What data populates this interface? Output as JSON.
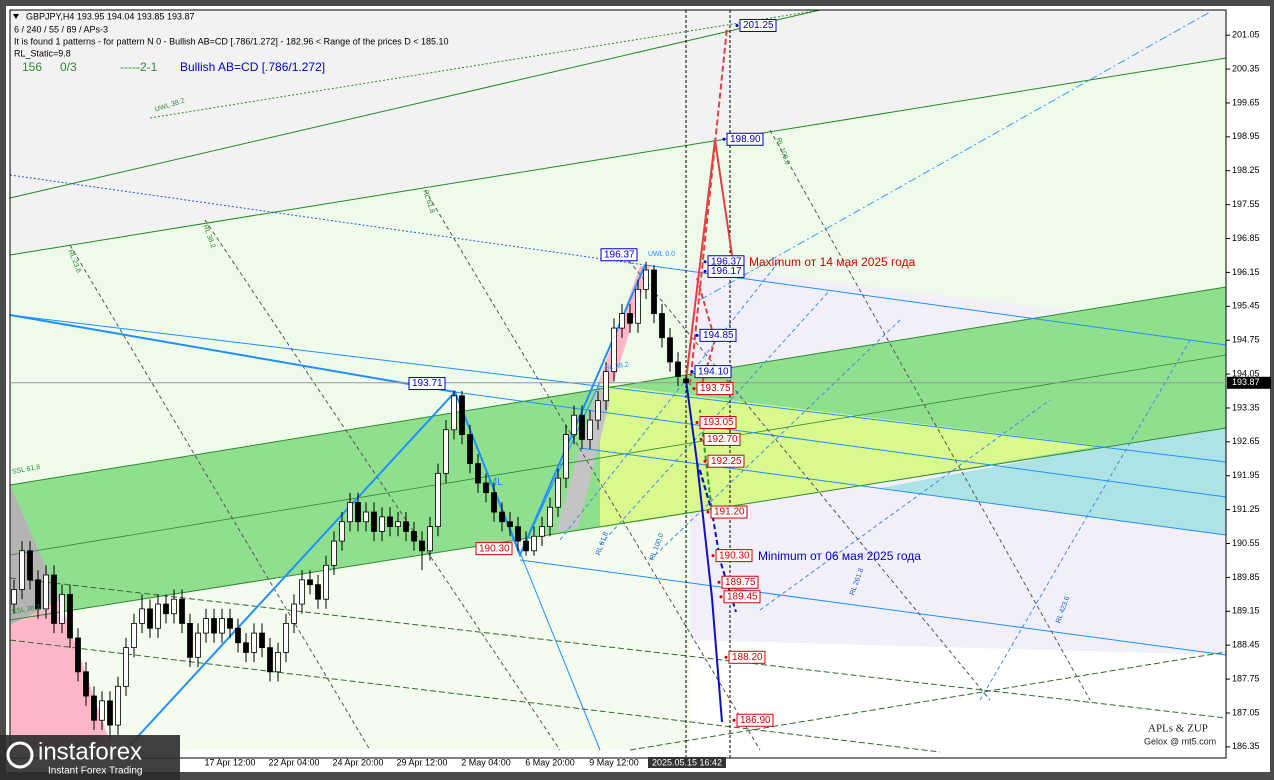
{
  "header": {
    "symbol_line": "GBPJPY,H4  193.95 194.04 193.85 193.87",
    "settings": "6 / 240 / 55 / 89 / APs-3",
    "pattern_info": "It is found 1 patterns  -  for pattern N 0 - Bullish AB=CD [.786/1.272] - 182.96 < Range of the prices D < 185.10",
    "rl_static": "RL_Static=9.8",
    "status": [
      "156",
      "0/3",
      "-----2-1"
    ],
    "pattern_name": "Bullish AB=CD [.786/1.272]"
  },
  "chart_data": {
    "type": "candlestick",
    "categories": [
      null,
      null,
      null,
      null,
      null,
      null,
      null,
      null,
      null,
      null,
      null,
      null,
      null,
      null,
      null,
      null,
      null,
      null,
      null,
      null,
      null,
      null,
      null,
      null,
      null,
      null,
      null,
      "17 Apr 12:00",
      null,
      null,
      null,
      null,
      null,
      null,
      null,
      "22 Apr 04:00",
      null,
      null,
      null,
      null,
      null,
      null,
      null,
      "24 Apr 20:00",
      null,
      null,
      null,
      null,
      null,
      null,
      null,
      "29 Apr 12:00",
      null,
      null,
      null,
      null,
      null,
      null,
      null,
      "2 May 04:00",
      null,
      null,
      null,
      null,
      null,
      null,
      null,
      "6 May 20:00",
      null,
      null,
      null,
      null,
      null,
      null,
      null,
      "9 May 12:00",
      null,
      null,
      null,
      null,
      null,
      null,
      null,
      null,
      "2025.05.15 16:42"
    ],
    "open": [
      189.3,
      189.6,
      190.4,
      189.8,
      189.2,
      189.9,
      188.9,
      189.5,
      188.6,
      187.9,
      187.4,
      186.9,
      187.3,
      186.8,
      187.6,
      188.4,
      188.9,
      189.2,
      188.8,
      189.3,
      189.1,
      189.4,
      188.9,
      188.2,
      188.7,
      189.0,
      188.7,
      189.0,
      188.8,
      188.5,
      188.3,
      188.7,
      188.4,
      187.9,
      188.3,
      188.9,
      189.3,
      189.8,
      189.7,
      189.4,
      190.1,
      190.6,
      191.0,
      191.4,
      191.0,
      191.2,
      190.8,
      191.1,
      190.9,
      191.0,
      190.8,
      190.6,
      190.4,
      190.9,
      192.0,
      192.9,
      193.6,
      192.8,
      192.2,
      191.8,
      191.6,
      191.2,
      191.0,
      190.9,
      190.6,
      190.4,
      190.7,
      190.9,
      191.3,
      191.9,
      192.8,
      193.2,
      192.7,
      193.1,
      193.5,
      194.1,
      195.0,
      195.3,
      195.1,
      195.8,
      196.2,
      195.3,
      194.8,
      194.3,
      193.95
    ],
    "high": [
      189.8,
      190.6,
      190.6,
      190.0,
      190.1,
      190.1,
      189.7,
      189.7,
      188.8,
      188.1,
      187.6,
      187.5,
      187.5,
      187.8,
      188.6,
      189.1,
      189.5,
      189.4,
      189.5,
      189.5,
      189.6,
      189.6,
      189.1,
      188.9,
      189.2,
      189.2,
      189.2,
      189.2,
      189.0,
      188.7,
      188.9,
      188.9,
      188.6,
      188.5,
      189.1,
      189.5,
      190.0,
      190.0,
      189.9,
      190.3,
      190.8,
      191.2,
      191.6,
      191.6,
      191.4,
      191.4,
      191.3,
      191.3,
      191.2,
      191.2,
      191.0,
      190.8,
      191.1,
      192.2,
      193.1,
      193.71,
      193.7,
      193.0,
      192.4,
      192.0,
      191.8,
      191.4,
      191.2,
      191.1,
      190.8,
      190.9,
      191.1,
      191.5,
      192.1,
      193.0,
      193.4,
      193.4,
      193.3,
      193.7,
      194.3,
      195.2,
      195.5,
      195.5,
      196.0,
      196.37,
      196.3,
      195.5,
      195.0,
      194.5,
      194.04
    ],
    "low": [
      189.1,
      189.4,
      189.6,
      189.0,
      189.0,
      188.7,
      188.7,
      188.4,
      187.7,
      187.2,
      186.7,
      186.7,
      186.5,
      186.6,
      187.4,
      188.2,
      188.7,
      188.6,
      188.6,
      188.9,
      188.9,
      188.7,
      188.0,
      188.0,
      188.5,
      188.5,
      188.5,
      188.6,
      188.3,
      188.1,
      188.1,
      188.2,
      187.7,
      187.7,
      188.1,
      188.7,
      189.1,
      189.5,
      189.2,
      189.2,
      189.9,
      190.4,
      190.8,
      190.8,
      190.8,
      190.6,
      190.6,
      190.7,
      190.7,
      190.6,
      190.4,
      190.0,
      190.2,
      190.7,
      191.8,
      192.7,
      192.6,
      192.0,
      191.6,
      191.4,
      191.0,
      190.8,
      190.7,
      190.4,
      190.3,
      190.3,
      190.5,
      190.7,
      191.1,
      191.7,
      192.6,
      192.5,
      192.5,
      192.9,
      193.3,
      193.9,
      194.8,
      194.9,
      194.9,
      195.6,
      195.1,
      194.6,
      194.1,
      193.8,
      193.85
    ],
    "close": [
      189.6,
      190.4,
      189.8,
      189.2,
      189.9,
      188.9,
      189.5,
      188.6,
      187.9,
      187.4,
      186.9,
      187.3,
      186.8,
      187.6,
      188.4,
      188.9,
      189.2,
      188.8,
      189.3,
      189.1,
      189.4,
      188.9,
      188.2,
      188.7,
      189.0,
      188.7,
      189.0,
      188.8,
      188.5,
      188.3,
      188.7,
      188.4,
      187.9,
      188.3,
      188.9,
      189.3,
      189.8,
      189.7,
      189.4,
      190.1,
      190.6,
      191.0,
      191.4,
      191.0,
      191.2,
      190.8,
      191.1,
      190.9,
      191.0,
      190.8,
      190.6,
      190.4,
      190.9,
      192.0,
      192.9,
      193.6,
      192.8,
      192.2,
      191.8,
      191.6,
      191.2,
      191.0,
      190.9,
      190.6,
      190.4,
      190.7,
      190.9,
      191.3,
      191.9,
      192.8,
      193.2,
      192.7,
      193.1,
      193.5,
      194.1,
      195.0,
      195.3,
      195.1,
      195.8,
      196.2,
      195.3,
      194.8,
      194.3,
      194.0,
      193.87
    ],
    "up_color": "#ffffff",
    "down_color": "#000000",
    "wick_color": "#000000",
    "ylim": [
      186.12,
      201.57
    ],
    "yticks": [
      201.05,
      200.35,
      199.65,
      198.95,
      198.25,
      197.55,
      196.85,
      196.15,
      195.45,
      194.75,
      194.05,
      193.35,
      192.65,
      191.95,
      191.25,
      190.55,
      189.85,
      189.15,
      188.45,
      187.75,
      187.05,
      186.35
    ],
    "current_price": 193.87,
    "price_tags": [
      {
        "value": 201.25,
        "label": "201.25",
        "color": "#0000cd"
      },
      {
        "value": 198.9,
        "label": "198.90",
        "color": "#0000cd"
      },
      {
        "value": 196.37,
        "label": "196.37",
        "color": "#0000cd"
      },
      {
        "value": 196.17,
        "label": "196.17",
        "color": "#0000cd"
      },
      {
        "value": 194.85,
        "label": "194.85",
        "color": "#0000cd"
      },
      {
        "value": 194.1,
        "label": "194.10",
        "color": "#0000cd"
      },
      {
        "value": 193.75,
        "label": "193.75",
        "color": "#d00000"
      },
      {
        "value": 193.05,
        "label": "193.05",
        "color": "#d00000"
      },
      {
        "value": 192.7,
        "label": "192.70",
        "color": "#d00000"
      },
      {
        "value": 192.25,
        "label": "192.25",
        "color": "#d00000"
      },
      {
        "value": 191.2,
        "label": "191.20",
        "color": "#d00000"
      },
      {
        "value": 190.3,
        "label": "190.30",
        "color": "#d00000"
      },
      {
        "value": 189.75,
        "label": "189.75",
        "color": "#d00000"
      },
      {
        "value": 189.45,
        "label": "189.45",
        "color": "#d00000"
      },
      {
        "value": 188.2,
        "label": "188.20",
        "color": "#d00000"
      },
      {
        "value": 186.9,
        "label": "186.90",
        "color": "#d00000"
      }
    ],
    "point_labels": [
      {
        "value": 196.37,
        "label": "196.37",
        "color": "#0000cd"
      },
      {
        "value": 193.71,
        "label": "193.71",
        "color": "#0000cd"
      },
      {
        "value": 190.3,
        "label": "190.30",
        "color": "#d00000"
      }
    ],
    "annotations": [
      {
        "text": "Maximum от 14 мая 2025 года",
        "color": "#d00000"
      },
      {
        "text": "Minimum от 06 мая 2025 года",
        "color": "#0000cd"
      }
    ],
    "level_labels": [
      "UWL 38.2",
      "RL 61.8",
      "RL 38.2",
      "RL 23.6",
      "UWL 0.0",
      "RL 100.0",
      "SSL 61.8",
      "SSL 38.2",
      "ML",
      "SL 38.2",
      "RL 261.8",
      "RL 423.6",
      "RL 100.0",
      "RL 61.8"
    ]
  },
  "watermark": {
    "title": "APLs & ZUP",
    "subtitle": "Gelox @ mt5.com"
  },
  "logo": {
    "name": "instaforex",
    "tagline": "Instant Forex Trading"
  }
}
